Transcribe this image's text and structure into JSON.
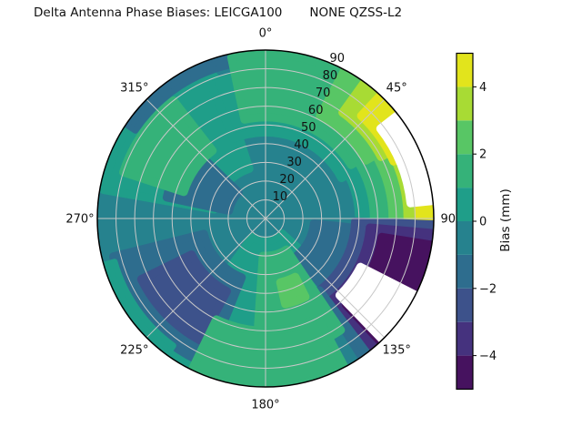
{
  "title": "Delta Antenna Phase Biases: LEICGA100       NONE QZSS-L2",
  "chart_data": {
    "type": "polar_contour",
    "title": "Delta Antenna Phase Biases: LEICGA100       NONE QZSS-L2",
    "projection": "azimuth-elevation skyplot, azimuth clockwise from north (0° top), radial axis 0-90",
    "azimuth_ticks": [
      {
        "angle_deg": 0,
        "label": "0°"
      },
      {
        "angle_deg": 45,
        "label": "45°"
      },
      {
        "angle_deg": 90,
        "label": "90°"
      },
      {
        "angle_deg": 135,
        "label": "135°"
      },
      {
        "angle_deg": 180,
        "label": "180°"
      },
      {
        "angle_deg": 225,
        "label": "225°"
      },
      {
        "angle_deg": 270,
        "label": "270°"
      },
      {
        "angle_deg": 315,
        "label": "315°"
      }
    ],
    "radial_ticks": [
      {
        "r": 10,
        "label": "10"
      },
      {
        "r": 20,
        "label": "20"
      },
      {
        "r": 30,
        "label": "30"
      },
      {
        "r": 40,
        "label": "40"
      },
      {
        "r": 50,
        "label": "50"
      },
      {
        "r": 60,
        "label": "60"
      },
      {
        "r": 70,
        "label": "70"
      },
      {
        "r": 80,
        "label": "80"
      },
      {
        "r": 90,
        "label": "90"
      }
    ],
    "radial_label_angle_deg": 22.5,
    "radial_range": [
      0,
      90
    ],
    "grid_color": "#c8c8c8",
    "outline_color": "#000000",
    "colorbar": {
      "label": "Bias (mm)",
      "range": [
        -5,
        5
      ],
      "band_edges": [
        -5,
        -4,
        -3,
        -2,
        -1,
        0,
        1,
        2,
        3,
        4,
        5
      ],
      "band_colors": [
        "#46125f",
        "#45327e",
        "#3d528b",
        "#2e6d8e",
        "#26828e",
        "#1f9e89",
        "#35b279",
        "#58c665",
        "#a8db34",
        "#e2e41c"
      ],
      "ticks": [
        {
          "value": 4,
          "label": "4"
        },
        {
          "value": 2,
          "label": "2"
        },
        {
          "value": 0,
          "label": "0"
        },
        {
          "value": -2,
          "label": "−2"
        },
        {
          "value": -4,
          "label": "−4"
        }
      ]
    },
    "mask_color": "#ffffff",
    "background_band": 4,
    "regions": [
      {
        "az0": 280,
        "az1": 342,
        "r0": 28,
        "r1": 88,
        "band": 5
      },
      {
        "az0": 338,
        "az1": 422,
        "r0": 46,
        "r1": 88,
        "band": 5
      },
      {
        "az0": 56,
        "az1": 96,
        "r0": 50,
        "r1": 88,
        "band": 5
      },
      {
        "az0": 132,
        "az1": 216,
        "r0": 12,
        "r1": 90,
        "band": 5
      },
      {
        "az0": 282,
        "az1": 314,
        "r0": 20,
        "r1": 54,
        "band": 3
      },
      {
        "az0": 202,
        "az1": 256,
        "r0": 34,
        "r1": 84,
        "band": 3
      },
      {
        "az0": 208,
        "az1": 244,
        "r0": 44,
        "r1": 74,
        "band": 2
      },
      {
        "az0": 216,
        "az1": 254,
        "r0": 84,
        "r1": 90,
        "band": 5
      },
      {
        "az0": 96,
        "az1": 140,
        "r0": 26,
        "r1": 68,
        "band": 3
      },
      {
        "az0": 343,
        "az1": 385,
        "r0": 82,
        "r1": 90,
        "band": 4
      },
      {
        "az0": 304,
        "az1": 350,
        "r0": 84,
        "r1": 90,
        "band": 3
      },
      {
        "az0": 348,
        "az1": 418,
        "r0": 54,
        "r1": 88,
        "band": 6
      },
      {
        "az0": 56,
        "az1": 93,
        "r0": 58,
        "r1": 90,
        "band": 6
      },
      {
        "az0": 28,
        "az1": 60,
        "r0": 62,
        "r1": 90,
        "band": 7
      },
      {
        "az0": 58,
        "az1": 93,
        "r0": 68,
        "r1": 90,
        "band": 7
      },
      {
        "az0": 36,
        "az1": 62,
        "r0": 70,
        "r1": 90,
        "band": 8
      },
      {
        "az0": 60,
        "az1": 93,
        "r0": 76,
        "r1": 90,
        "band": 8
      },
      {
        "az0": 43,
        "az1": 66,
        "r0": 75,
        "r1": 90,
        "band": 9
      },
      {
        "az0": 64,
        "az1": 95,
        "r0": 82,
        "r1": 90,
        "band": 9
      },
      {
        "az0": 92,
        "az1": 146,
        "r0": 48,
        "r1": 90,
        "band": 2
      },
      {
        "az0": 95,
        "az1": 141,
        "r0": 56,
        "r1": 90,
        "band": 1
      },
      {
        "az0": 99,
        "az1": 137,
        "r0": 63,
        "r1": 90,
        "band": 0
      },
      {
        "az0": 143,
        "az1": 152,
        "r0": 48,
        "r1": 90,
        "band": 3
      },
      {
        "az0": 148,
        "az1": 157,
        "r0": 44,
        "r1": 90,
        "band": 4
      },
      {
        "az0": 146,
        "az1": 184,
        "r0": 20,
        "r1": 72,
        "band": 6
      },
      {
        "az0": 152,
        "az1": 206,
        "r0": 60,
        "r1": 90,
        "band": 6
      },
      {
        "az0": 153,
        "az1": 167,
        "r0": 35,
        "r1": 47,
        "band": 7
      },
      {
        "az0": 288,
        "az1": 322,
        "r0": 46,
        "r1": 80,
        "band": 6
      },
      {
        "az0": 52,
        "az1": 84,
        "r0": 78,
        "r1": 90,
        "band": "mask"
      },
      {
        "az0": 117,
        "az1": 136,
        "r0": 57,
        "r1": 90,
        "band": "mask"
      }
    ]
  }
}
